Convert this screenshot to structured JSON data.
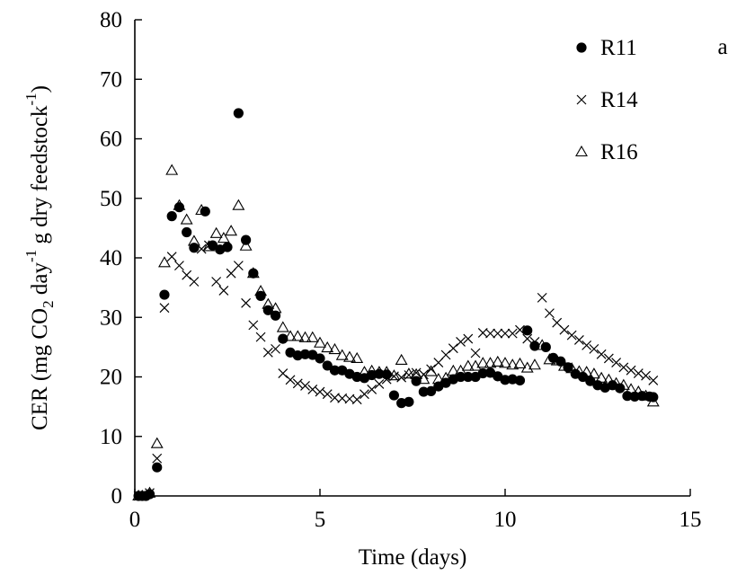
{
  "chart_data": {
    "type": "scatter",
    "panel_label": "a",
    "xlabel": "Time (days)",
    "ylabel": {
      "parts": [
        {
          "text": "CER (mg CO",
          "shift": "base"
        },
        {
          "text": "2",
          "shift": "sub"
        },
        {
          "text": " day",
          "shift": "base"
        },
        {
          "text": "-1",
          "shift": "sup"
        },
        {
          "text": " g dry feedstock",
          "shift": "base"
        },
        {
          "text": "-1",
          "shift": "sup"
        },
        {
          "text": ")",
          "shift": "base"
        }
      ]
    },
    "xlim": [
      0,
      15
    ],
    "ylim": [
      0,
      80
    ],
    "xticks": [
      "0",
      "5",
      "10",
      "15"
    ],
    "yticks": [
      "0",
      "10",
      "20",
      "30",
      "40",
      "50",
      "60",
      "70",
      "80"
    ],
    "grid": false,
    "legend_position": "top-right",
    "series": [
      {
        "name": "R11",
        "marker": "filled-circle",
        "color": "#000000",
        "x": [
          0.1,
          0.2,
          0.3,
          0.4,
          0.6,
          0.8,
          1.0,
          1.2,
          1.4,
          1.6,
          1.9,
          2.1,
          2.3,
          2.5,
          2.8,
          3.0,
          3.2,
          3.4,
          3.6,
          3.8,
          4.0,
          4.2,
          4.4,
          4.6,
          4.8,
          5.0,
          5.2,
          5.4,
          5.6,
          5.8,
          6.0,
          6.2,
          6.4,
          6.6,
          6.8,
          7.0,
          7.2,
          7.4,
          7.6,
          7.8,
          8.0,
          8.2,
          8.4,
          8.6,
          8.8,
          9.0,
          9.2,
          9.4,
          9.6,
          9.8,
          10.0,
          10.2,
          10.4,
          10.6,
          10.8,
          11.1,
          11.3,
          11.5,
          11.7,
          11.9,
          12.1,
          12.3,
          12.5,
          12.7,
          12.9,
          13.1,
          13.3,
          13.5,
          13.7,
          13.9,
          14.0
        ],
        "y": [
          0,
          0,
          0,
          0.3,
          4.8,
          33.8,
          47.0,
          48.5,
          44.3,
          41.7,
          47.8,
          42.1,
          41.4,
          41.8,
          64.3,
          43.0,
          37.4,
          33.6,
          31.2,
          30.3,
          26.4,
          24.1,
          23.6,
          23.8,
          23.7,
          23.1,
          21.9,
          21.1,
          21.1,
          20.5,
          20.0,
          19.8,
          20.3,
          20.5,
          20.4,
          16.9,
          15.6,
          15.8,
          19.3,
          17.5,
          17.6,
          18.4,
          19.0,
          19.6,
          20.0,
          20.0,
          20.0,
          20.6,
          20.7,
          20.1,
          19.5,
          19.6,
          19.4,
          27.8,
          25.2,
          25.0,
          23.2,
          22.6,
          21.6,
          20.5,
          20.0,
          19.3,
          18.6,
          18.2,
          18.6,
          18.1,
          16.8,
          16.7,
          16.8,
          16.7,
          16.6
        ]
      },
      {
        "name": "R14",
        "marker": "x",
        "color": "#000000",
        "x": [
          0.1,
          0.2,
          0.4,
          0.6,
          0.8,
          1.0,
          1.2,
          1.4,
          1.6,
          1.8,
          2.0,
          2.2,
          2.4,
          2.6,
          2.8,
          3.0,
          3.2,
          3.4,
          3.6,
          3.8,
          4.0,
          4.2,
          4.4,
          4.6,
          4.8,
          5.0,
          5.2,
          5.4,
          5.6,
          5.8,
          6.0,
          6.2,
          6.4,
          6.6,
          6.8,
          7.0,
          7.2,
          7.4,
          7.6,
          7.8,
          8.0,
          8.2,
          8.4,
          8.6,
          8.8,
          9.0,
          9.2,
          9.4,
          9.6,
          9.8,
          10.0,
          10.2,
          10.4,
          10.6,
          10.8,
          11.0,
          11.2,
          11.4,
          11.6,
          11.8,
          12.0,
          12.2,
          12.4,
          12.6,
          12.8,
          13.0,
          13.2,
          13.4,
          13.6,
          13.8,
          14.0
        ],
        "y": [
          0,
          0,
          0.5,
          6.3,
          31.6,
          40.2,
          38.7,
          37.1,
          36.0,
          41.5,
          42.1,
          36.0,
          34.5,
          37.4,
          38.7,
          32.4,
          28.7,
          26.7,
          24.1,
          24.7,
          20.6,
          19.5,
          18.9,
          18.5,
          17.9,
          17.5,
          17.1,
          16.5,
          16.4,
          16.3,
          16.2,
          17.1,
          17.9,
          18.8,
          19.6,
          20.1,
          19.9,
          20.3,
          20.7,
          20.4,
          21.3,
          22.4,
          23.7,
          24.8,
          25.9,
          26.4,
          24.0,
          27.4,
          27.3,
          27.3,
          27.3,
          27.3,
          27.9,
          26.4,
          25.9,
          33.3,
          30.7,
          29.1,
          27.9,
          27.0,
          26.2,
          25.3,
          24.7,
          23.8,
          23.1,
          22.4,
          21.6,
          21.1,
          20.6,
          20.2,
          19.4
        ]
      },
      {
        "name": "R16",
        "marker": "open-triangle",
        "color": "#000000",
        "x": [
          0.1,
          0.2,
          0.4,
          0.6,
          0.8,
          1.0,
          1.2,
          1.4,
          1.6,
          1.8,
          2.0,
          2.2,
          2.4,
          2.6,
          2.8,
          3.0,
          3.2,
          3.4,
          3.6,
          3.8,
          4.0,
          4.2,
          4.4,
          4.6,
          4.8,
          5.0,
          5.2,
          5.4,
          5.6,
          5.8,
          6.0,
          6.2,
          6.4,
          6.6,
          6.8,
          7.0,
          7.2,
          7.4,
          7.6,
          7.8,
          8.0,
          8.2,
          8.4,
          8.6,
          8.8,
          9.0,
          9.2,
          9.4,
          9.6,
          9.8,
          10.0,
          10.2,
          10.4,
          10.6,
          10.8,
          11.0,
          11.2,
          11.4,
          11.6,
          11.8,
          12.0,
          12.2,
          12.4,
          12.6,
          12.8,
          13.0,
          13.2,
          13.4,
          13.6,
          13.8,
          14.0
        ],
        "y": [
          0,
          0,
          0.5,
          8.8,
          39.2,
          54.7,
          48.8,
          46.4,
          42.8,
          48.0,
          41.9,
          44.1,
          43.3,
          44.5,
          48.8,
          42.0,
          37.4,
          34.4,
          32.2,
          31.5,
          28.3,
          26.8,
          26.8,
          26.6,
          26.6,
          25.7,
          24.9,
          24.6,
          23.6,
          23.3,
          23.1,
          20.8,
          21.0,
          20.8,
          20.8,
          20.2,
          22.8,
          20.5,
          20.4,
          19.6,
          20.9,
          19.6,
          19.8,
          21.0,
          21.0,
          21.8,
          21.8,
          22.3,
          22.3,
          22.5,
          22.3,
          22.0,
          22.2,
          21.5,
          22.0,
          25.3,
          22.9,
          22.7,
          21.8,
          21.4,
          20.9,
          20.8,
          20.5,
          19.8,
          19.5,
          18.9,
          18.6,
          17.9,
          17.5,
          16.8,
          15.8
        ]
      }
    ]
  }
}
